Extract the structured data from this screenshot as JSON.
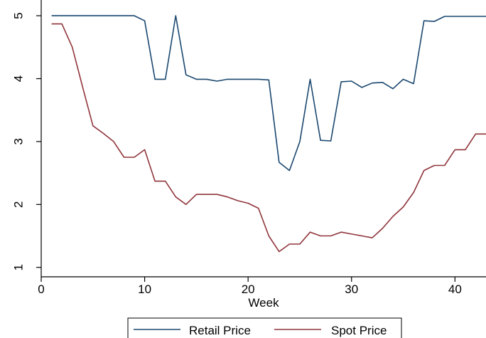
{
  "chart_data": {
    "type": "line",
    "title": "",
    "xlabel": "Week",
    "ylabel": "",
    "xlim": [
      0,
      43
    ],
    "ylim": [
      0.85,
      5.25
    ],
    "xticks": [
      0,
      10,
      20,
      30,
      40
    ],
    "yticks": [
      1,
      2,
      3,
      4,
      5
    ],
    "grid": false,
    "legend_position": "bottom",
    "series": [
      {
        "name": "Retail Price",
        "color": "#1a476f",
        "points": [
          [
            1,
            5.0
          ],
          [
            2,
            5.0
          ],
          [
            3,
            5.0
          ],
          [
            4,
            5.0
          ],
          [
            5,
            5.0
          ],
          [
            6,
            5.0
          ],
          [
            7,
            5.0
          ],
          [
            8,
            5.0
          ],
          [
            9,
            5.0
          ],
          [
            10,
            4.92
          ],
          [
            11,
            3.99
          ],
          [
            12,
            3.99
          ],
          [
            13,
            5.0
          ],
          [
            14,
            4.06
          ],
          [
            15,
            3.99
          ],
          [
            16,
            3.99
          ],
          [
            17,
            3.96
          ],
          [
            18,
            3.99
          ],
          [
            19,
            3.99
          ],
          [
            20,
            3.99
          ],
          [
            21,
            3.99
          ],
          [
            22,
            3.98
          ],
          [
            23,
            2.67
          ],
          [
            24,
            2.54
          ],
          [
            25,
            3.0
          ],
          [
            26,
            3.99
          ],
          [
            27,
            3.02
          ],
          [
            28,
            3.01
          ],
          [
            29,
            3.95
          ],
          [
            30,
            3.96
          ],
          [
            31,
            3.86
          ],
          [
            32,
            3.93
          ],
          [
            33,
            3.94
          ],
          [
            34,
            3.84
          ],
          [
            35,
            3.99
          ],
          [
            36,
            3.92
          ],
          [
            37,
            4.92
          ],
          [
            38,
            4.91
          ],
          [
            39,
            4.99
          ],
          [
            40,
            4.99
          ],
          [
            41,
            4.99
          ],
          [
            42,
            4.99
          ],
          [
            43,
            4.99
          ]
        ]
      },
      {
        "name": "Spot Price",
        "color": "#90353b",
        "points": [
          [
            1,
            4.87
          ],
          [
            2,
            4.87
          ],
          [
            3,
            4.5
          ],
          [
            4,
            3.87
          ],
          [
            5,
            3.25
          ],
          [
            6,
            3.13
          ],
          [
            7,
            3.0
          ],
          [
            8,
            2.75
          ],
          [
            9,
            2.75
          ],
          [
            10,
            2.87
          ],
          [
            11,
            2.37
          ],
          [
            12,
            2.37
          ],
          [
            13,
            2.12
          ],
          [
            14,
            2.0
          ],
          [
            15,
            2.16
          ],
          [
            16,
            2.16
          ],
          [
            17,
            2.16
          ],
          [
            18,
            2.12
          ],
          [
            19,
            2.06
          ],
          [
            20,
            2.02
          ],
          [
            21,
            1.94
          ],
          [
            22,
            1.5
          ],
          [
            23,
            1.25
          ],
          [
            24,
            1.37
          ],
          [
            25,
            1.37
          ],
          [
            26,
            1.56
          ],
          [
            27,
            1.5
          ],
          [
            28,
            1.5
          ],
          [
            29,
            1.56
          ],
          [
            30,
            1.53
          ],
          [
            31,
            1.5
          ],
          [
            32,
            1.47
          ],
          [
            33,
            1.62
          ],
          [
            34,
            1.81
          ],
          [
            35,
            1.96
          ],
          [
            36,
            2.19
          ],
          [
            37,
            2.54
          ],
          [
            38,
            2.62
          ],
          [
            39,
            2.62
          ],
          [
            40,
            2.87
          ],
          [
            41,
            2.87
          ],
          [
            42,
            3.12
          ],
          [
            43,
            3.12
          ]
        ]
      }
    ]
  }
}
